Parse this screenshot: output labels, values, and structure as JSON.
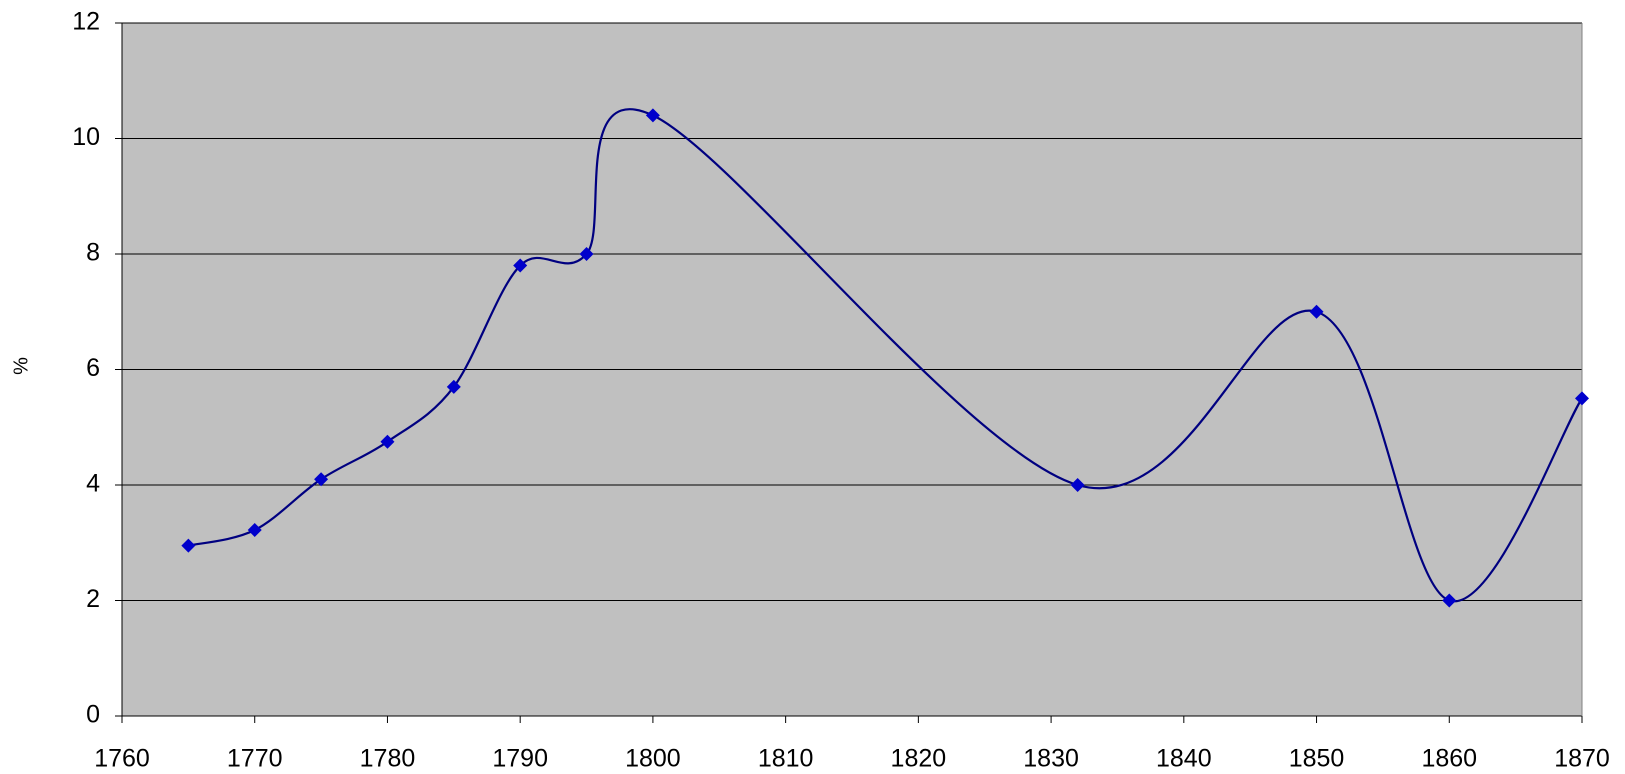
{
  "chart_data": {
    "type": "line",
    "y_label": "%",
    "x": [
      1765,
      1770,
      1775,
      1780,
      1785,
      1790,
      1795,
      1800,
      1832,
      1850,
      1860,
      1870
    ],
    "series": [
      {
        "color": "#000080",
        "values": [
          2.95,
          3.22,
          4.1,
          4.75,
          5.7,
          7.8,
          8.0,
          10.4,
          4.0,
          7.0,
          2.0,
          5.5
        ]
      }
    ],
    "marker_color": "#0000cc",
    "xlim": [
      1760,
      1870
    ],
    "xticks": [
      1760,
      1770,
      1780,
      1790,
      1800,
      1810,
      1820,
      1830,
      1840,
      1850,
      1860,
      1870
    ],
    "ylim": [
      0,
      12
    ],
    "yticks": [
      0,
      2,
      4,
      6,
      8,
      10,
      12
    ],
    "grid": true,
    "smooth": true,
    "background": "#c0c0c0"
  }
}
